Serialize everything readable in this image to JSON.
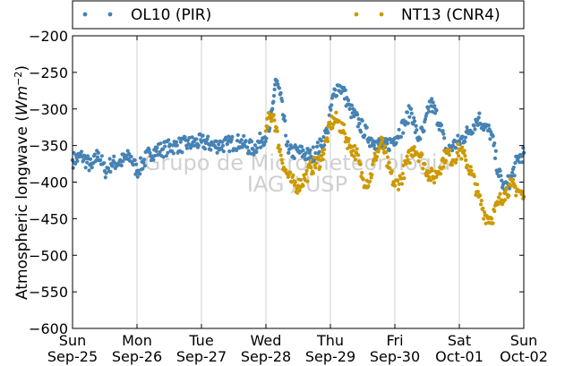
{
  "chart_data": {
    "type": "scatter",
    "ylabel": "Atmospheric longwave (Wm⁻²)",
    "ylabel_main": "Atmospheric longwave (",
    "ylabel_unit": "Wm",
    "ylabel_exp": "−2",
    "ylabel_close": ")",
    "ylim": [
      -600,
      -200
    ],
    "yticks": [
      -200,
      -250,
      -300,
      -350,
      -400,
      -450,
      -500,
      -550,
      -600
    ],
    "ytick_labels": [
      "−200",
      "−250",
      "−300",
      "−350",
      "−400",
      "−450",
      "−500",
      "−550",
      "−600"
    ],
    "xlim": [
      "2016-09-25",
      "2016-10-02"
    ],
    "xticks": [
      {
        "day": "Sun",
        "date": "Sep-25"
      },
      {
        "day": "Mon",
        "date": "Sep-26"
      },
      {
        "day": "Tue",
        "date": "Sep-27"
      },
      {
        "day": "Wed",
        "date": "Sep-28"
      },
      {
        "day": "Thu",
        "date": "Sep-29"
      },
      {
        "day": "Fri",
        "date": "Sep-30"
      },
      {
        "day": "Sat",
        "date": "Oct-01"
      },
      {
        "day": "Sun",
        "date": "Oct-02"
      }
    ],
    "grid": "x",
    "legend_placement": "top, above plot",
    "watermark": [
      "Grupo de Micrometeorologia",
      "IAG / USP"
    ],
    "series": [
      {
        "name": "OL10 (PIR)",
        "color": "#4682b4",
        "x_days": [
          0.0,
          0.15,
          0.3,
          0.4,
          0.5,
          0.6,
          0.75,
          0.9,
          1.0,
          1.2,
          1.4,
          1.6,
          1.8,
          2.0,
          2.2,
          2.4,
          2.6,
          2.8,
          2.95,
          3.05,
          3.1,
          3.15,
          3.22,
          3.35,
          3.5,
          3.7,
          3.85,
          3.95,
          4.05,
          4.12,
          4.2,
          4.3,
          4.45,
          4.6,
          4.7,
          4.85,
          5.0,
          5.15,
          5.25,
          5.35,
          5.45,
          5.55,
          5.7,
          5.8,
          5.9,
          6.0,
          6.15,
          6.3,
          6.4,
          6.5,
          6.6,
          6.7,
          6.8,
          6.9,
          7.0
        ],
        "y_values": [
          -370,
          -365,
          -380,
          -360,
          -385,
          -375,
          -372,
          -365,
          -385,
          -360,
          -355,
          -350,
          -348,
          -345,
          -350,
          -348,
          -345,
          -355,
          -340,
          -330,
          -300,
          -260,
          -280,
          -360,
          -358,
          -365,
          -350,
          -330,
          -280,
          -268,
          -275,
          -300,
          -320,
          -340,
          -345,
          -352,
          -340,
          -320,
          -300,
          -340,
          -330,
          -290,
          -320,
          -360,
          -350,
          -345,
          -330,
          -312,
          -325,
          -335,
          -385,
          -410,
          -395,
          -370,
          -360
        ]
      },
      {
        "name": "NT13 (CNR4)",
        "color": "#cc9900",
        "x_days": [
          3.0,
          3.05,
          3.12,
          3.2,
          3.3,
          3.4,
          3.5,
          3.6,
          3.7,
          3.85,
          3.95,
          4.0,
          4.1,
          4.2,
          4.3,
          4.4,
          4.5,
          4.6,
          4.7,
          4.8,
          4.9,
          5.0,
          5.1,
          5.2,
          5.3,
          5.4,
          5.5,
          5.6,
          5.7,
          5.8,
          5.9,
          6.0,
          6.1,
          6.2,
          6.3,
          6.4,
          6.5,
          6.6,
          6.7,
          6.8,
          6.9,
          7.0
        ],
        "y_values": [
          -330,
          -312,
          -308,
          -350,
          -385,
          -400,
          -405,
          -395,
          -380,
          -370,
          -340,
          -320,
          -315,
          -330,
          -350,
          -360,
          -395,
          -400,
          -365,
          -345,
          -380,
          -405,
          -395,
          -370,
          -352,
          -365,
          -385,
          -395,
          -380,
          -360,
          -370,
          -355,
          -370,
          -390,
          -420,
          -445,
          -450,
          -430,
          -415,
          -405,
          -410,
          -420
        ]
      }
    ]
  }
}
